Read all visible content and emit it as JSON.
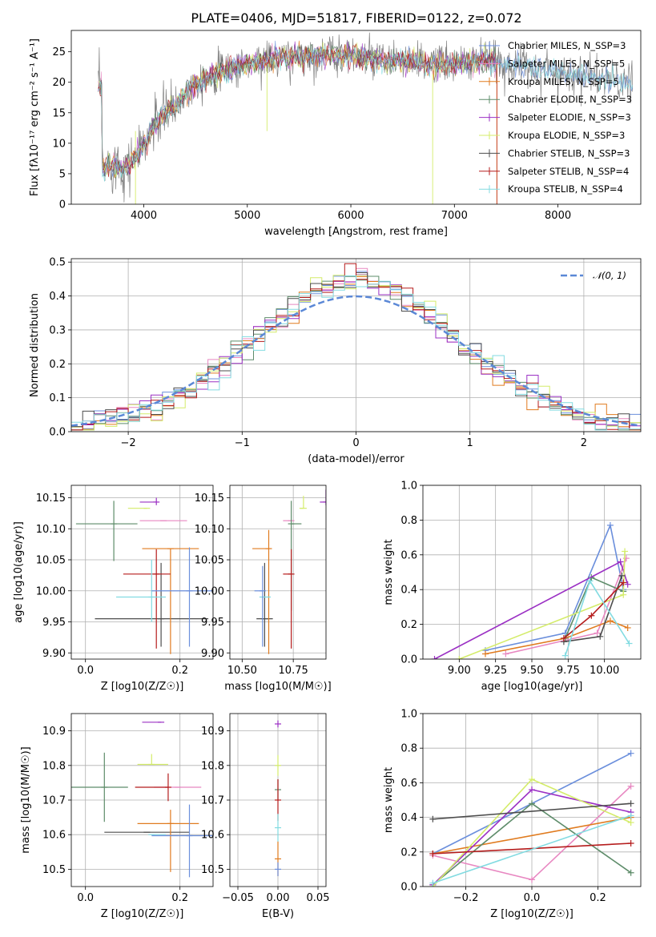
{
  "chart_data": [
    {
      "type": "line",
      "title": "PLATE=0406, MJD=51817, FIBERID=0122, z=0.072",
      "xlabel": "wavelength [Angstrom, rest frame]",
      "ylabel": "Flux [fλ10⁻¹⁷ erg cm⁻² s⁻¹ A⁻¹]",
      "xlim": [
        3300,
        8800
      ],
      "ylim": [
        0,
        28.5
      ],
      "xticks": [
        "4000",
        "5000",
        "6000",
        "7000",
        "8000"
      ],
      "yticks": [
        "0",
        "5",
        "10",
        "15",
        "20",
        "25"
      ],
      "legend_position": "top-right",
      "data_spectrum_color": "#808080",
      "spectrum_envelope": {
        "x": [
          3600,
          3700,
          3800,
          3900,
          4000,
          4100,
          4200,
          4300,
          4400,
          4500,
          4700,
          4900,
          5100,
          5300,
          5500,
          5700,
          5900,
          6100,
          6300,
          6500,
          6700,
          6900,
          7100,
          7300,
          7500,
          7700,
          7900,
          8100,
          8300,
          8500,
          8700
        ],
        "y": [
          6,
          6.5,
          6,
          7,
          9.5,
          13,
          15,
          16,
          18,
          20,
          21.5,
          22.5,
          23.5,
          24,
          24,
          24.5,
          24.5,
          24,
          23.5,
          23.5,
          23,
          23,
          23,
          23.5,
          23,
          22.5,
          22,
          21.5,
          21,
          20.5,
          19.5
        ]
      },
      "series": [
        {
          "name": "Chabrier MILES, N_SSP=3",
          "color": "#6b8fdc"
        },
        {
          "name": "Salpeter MILES, N_SSP=5",
          "color": "#e887c1"
        },
        {
          "name": "Kroupa MILES, N_SSP=5",
          "color": "#e07b1f"
        },
        {
          "name": "Chabrier ELODIE, N_SSP=3",
          "color": "#5e8c6a"
        },
        {
          "name": "Salpeter ELODIE, N_SSP=3",
          "color": "#9b30c4"
        },
        {
          "name": "Kroupa ELODIE, N_SSP=3",
          "color": "#d4ec6a"
        },
        {
          "name": "Chabrier STELIB, N_SSP=3",
          "color": "#4d4d4d"
        },
        {
          "name": "Salpeter STELIB, N_SSP=4",
          "color": "#b51c1c"
        },
        {
          "name": "Kroupa STELIB, N_SSP=4",
          "color": "#82dbe1"
        }
      ]
    },
    {
      "type": "histogram",
      "xlabel": "(data-model)/error",
      "ylabel": "Normed distribution",
      "xlim": [
        -2.5,
        2.5
      ],
      "ylim": [
        0,
        0.51
      ],
      "xticks": [
        "−2",
        "−1",
        "0",
        "1",
        "2"
      ],
      "yticks": [
        "0.0",
        "0.1",
        "0.2",
        "0.3",
        "0.4",
        "0.5"
      ],
      "grid": true,
      "legend_label": "𝒩(0, 1)",
      "legend_position": "top-right",
      "bin_width": 0.1,
      "series_colors": [
        "#6b8fdc",
        "#e887c1",
        "#e07b1f",
        "#5e8c6a",
        "#9b30c4",
        "#d4ec6a",
        "#4d4d4d",
        "#b51c1c",
        "#82dbe1"
      ],
      "reference_curve": {
        "type": "normal",
        "mean": 0,
        "sd": 1,
        "color": "#5b88d6"
      }
    },
    {
      "type": "scatter",
      "xlabel": "Z [log10(Z/Z☉)]",
      "ylabel": "age  [log10(age/yr)]",
      "xlim": [
        -0.03,
        0.27
      ],
      "ylim": [
        9.89,
        10.17
      ],
      "xticks": [
        "0.0",
        "0.2"
      ],
      "yticks": [
        "9.90",
        "9.95",
        "10.00",
        "10.05",
        "10.10",
        "10.15"
      ],
      "grid": true,
      "points": [
        {
          "x": 0.16,
          "y": 9.955,
          "xerr": [
            0.14,
            0.1
          ],
          "yerr": [
            0.045,
            0.09
          ],
          "color": "#4d4d4d"
        },
        {
          "x": 0.165,
          "y": 10.113,
          "xerr": [
            0.05,
            0.05
          ],
          "yerr": [
            0.0,
            0.0
          ],
          "color": "#e887c1"
        },
        {
          "x": 0.15,
          "y": 10.143,
          "xerr": [
            0.035,
            0.0
          ],
          "yerr": [
            0.005,
            0.007
          ],
          "color": "#9b30c4"
        },
        {
          "x": 0.13,
          "y": 10.133,
          "xerr": [
            0.04,
            0.0
          ],
          "yerr": [
            0.0,
            0.0
          ],
          "color": "#d4ec6a"
        },
        {
          "x": 0.06,
          "y": 10.108,
          "xerr": [
            0.08,
            0.05
          ],
          "yerr": [
            0.06,
            0.037
          ],
          "color": "#5e8c6a"
        },
        {
          "x": 0.18,
          "y": 10.068,
          "xerr": [
            0.06,
            0.06
          ],
          "yerr": [
            0.17,
            0.0
          ],
          "color": "#e07b1f"
        },
        {
          "x": 0.15,
          "y": 10.027,
          "xerr": [
            0.07,
            0.03
          ],
          "yerr": [
            0.12,
            0.04
          ],
          "color": "#b51c1c"
        },
        {
          "x": 0.14,
          "y": 9.99,
          "xerr": [
            0.075,
            0.03
          ],
          "yerr": [
            0.04,
            0.06
          ],
          "color": "#82dbe1"
        },
        {
          "x": 0.22,
          "y": 10.0,
          "xerr": [
            0.08,
            0.06
          ],
          "yerr": [
            0.09,
            0.07
          ],
          "color": "#6b8fdc"
        }
      ]
    },
    {
      "type": "scatter",
      "xlabel": "mass [log10(M/M☉)]",
      "xlim": [
        10.44,
        10.91
      ],
      "ylim": [
        9.89,
        10.17
      ],
      "xticks": [
        "10.50",
        "10.75"
      ],
      "yticks": [
        "9.90",
        "9.95",
        "10.00",
        "10.05",
        "10.10",
        "10.15"
      ],
      "grid": true,
      "points": [
        {
          "x": 10.61,
          "y": 9.955,
          "xerr": [
            0.04,
            0.04
          ],
          "yerr": [
            0.045,
            0.09
          ],
          "color": "#4d4d4d"
        },
        {
          "x": 10.74,
          "y": 10.113,
          "xerr": [
            0.04,
            0.0
          ],
          "yerr": [
            0.0,
            0.0
          ],
          "color": "#e887c1"
        },
        {
          "x": 10.91,
          "y": 10.143,
          "xerr": [
            0.03,
            0.0
          ],
          "yerr": [
            0.005,
            0.02
          ],
          "color": "#9b30c4"
        },
        {
          "x": 10.8,
          "y": 10.133,
          "xerr": [
            0.02,
            0.0
          ],
          "yerr": [
            0.0,
            0.02
          ],
          "color": "#d4ec6a"
        },
        {
          "x": 10.74,
          "y": 10.108,
          "xerr": [
            0.0,
            0.05
          ],
          "yerr": [
            0.14,
            0.037
          ],
          "color": "#5e8c6a"
        },
        {
          "x": 10.63,
          "y": 10.068,
          "xerr": [
            0.08,
            0.0
          ],
          "yerr": [
            0.17,
            0.03
          ],
          "color": "#e07b1f"
        },
        {
          "x": 10.74,
          "y": 10.027,
          "xerr": [
            0.04,
            0.0
          ],
          "yerr": [
            0.12,
            0.04
          ],
          "color": "#b51c1c"
        },
        {
          "x": 10.6,
          "y": 9.99,
          "xerr": [
            0.0,
            0.04
          ],
          "yerr": [
            0.0,
            0.0
          ],
          "color": "#82dbe1"
        },
        {
          "x": 10.6,
          "y": 10.0,
          "xerr": [
            0.04,
            0.0
          ],
          "yerr": [
            0.09,
            0.04
          ],
          "color": "#6b8fdc"
        }
      ]
    },
    {
      "type": "line",
      "xlabel": "age  [log10(age/yr)]",
      "ylabel": "mass weight",
      "xlim": [
        8.75,
        10.25
      ],
      "ylim": [
        0,
        1.0
      ],
      "xticks": [
        "9.00",
        "9.25",
        "9.50",
        "9.75",
        "10.00"
      ],
      "yticks": [
        "0.0",
        "0.2",
        "0.4",
        "0.6",
        "0.8",
        "1.0"
      ],
      "grid": true,
      "series": [
        {
          "color": "#6b8fdc",
          "x": [
            9.18,
            9.73,
            10.04,
            10.13
          ],
          "y": [
            0.05,
            0.15,
            0.77,
            0.4
          ]
        },
        {
          "color": "#e887c1",
          "x": [
            9.32,
            9.95,
            10.15
          ],
          "y": [
            0.03,
            0.15,
            0.58
          ]
        },
        {
          "color": "#e07b1f",
          "x": [
            9.18,
            9.73,
            10.04,
            10.16
          ],
          "y": [
            0.03,
            0.12,
            0.22,
            0.18
          ]
        },
        {
          "color": "#5e8c6a",
          "x": [
            9.73,
            9.91,
            10.13
          ],
          "y": [
            0.12,
            0.47,
            0.39
          ]
        },
        {
          "color": "#9b30c4",
          "x": [
            8.83,
            10.11,
            10.16
          ],
          "y": [
            0.0,
            0.56,
            0.43
          ]
        },
        {
          "color": "#d4ec6a",
          "x": [
            9.0,
            10.13,
            10.14
          ],
          "y": [
            0.0,
            0.37,
            0.62
          ]
        },
        {
          "color": "#4d4d4d",
          "x": [
            9.72,
            9.97,
            10.12
          ],
          "y": [
            0.1,
            0.13,
            0.48
          ]
        },
        {
          "color": "#b51c1c",
          "x": [
            9.72,
            9.91,
            10.13
          ],
          "y": [
            0.12,
            0.25,
            0.44
          ]
        },
        {
          "color": "#82dbe1",
          "x": [
            9.73,
            9.9,
            10.17
          ],
          "y": [
            0.02,
            0.45,
            0.09
          ]
        }
      ]
    },
    {
      "type": "scatter",
      "xlabel": "Z [log10(Z/Z☉)]",
      "ylabel": "mass [log10(M/M☉)]",
      "xlim": [
        -0.03,
        0.27
      ],
      "ylim": [
        10.45,
        10.95
      ],
      "xticks": [
        "0.0",
        "0.2"
      ],
      "yticks": [
        "10.5",
        "10.6",
        "10.7",
        "10.8",
        "10.9"
      ],
      "grid": true,
      "points": [
        {
          "x": 0.13,
          "y": 10.607,
          "xerr": [
            0.09,
            0.09
          ],
          "yerr": [
            0.0,
            0.0
          ],
          "color": "#4d4d4d"
        },
        {
          "x": 0.195,
          "y": 10.737,
          "xerr": [
            0.05,
            0.05
          ],
          "yerr": [
            0.0,
            0.0
          ],
          "color": "#e887c1"
        },
        {
          "x": 0.16,
          "y": 10.925,
          "xerr": [
            0.04,
            0.0
          ],
          "yerr": [
            0.0,
            0.0
          ],
          "color": "#9b30c4"
        },
        {
          "x": 0.14,
          "y": 10.803,
          "xerr": [
            0.03,
            0.035
          ],
          "yerr": [
            0.0,
            0.03
          ],
          "color": "#d4ec6a"
        },
        {
          "x": 0.04,
          "y": 10.737,
          "xerr": [
            0.07,
            0.05
          ],
          "yerr": [
            0.1,
            0.1
          ],
          "color": "#5e8c6a"
        },
        {
          "x": 0.18,
          "y": 10.632,
          "xerr": [
            0.07,
            0.06
          ],
          "yerr": [
            0.14,
            0.04
          ],
          "color": "#e07b1f"
        },
        {
          "x": 0.175,
          "y": 10.737,
          "xerr": [
            0.07,
            0.0
          ],
          "yerr": [
            0.04,
            0.04
          ],
          "color": "#b51c1c"
        },
        {
          "x": 0.14,
          "y": 10.6,
          "xerr": [
            0.0,
            0.03
          ],
          "yerr": [
            0.0,
            0.0
          ],
          "color": "#82dbe1"
        },
        {
          "x": 0.22,
          "y": 10.597,
          "xerr": [
            0.08,
            0.05
          ],
          "yerr": [
            0.12,
            0.09
          ],
          "color": "#6b8fdc"
        }
      ]
    },
    {
      "type": "scatter",
      "xlabel": "E(B-V)",
      "xlim": [
        -0.06,
        0.06
      ],
      "ylim": [
        10.45,
        10.95
      ],
      "xticks": [
        "−0.05",
        "0.00",
        "0.05"
      ],
      "yticks": [
        "10.5",
        "10.6",
        "10.7",
        "10.8",
        "10.9"
      ],
      "grid": true,
      "points": [
        {
          "x": 0.0,
          "y": 10.92,
          "yerr": [
            0.01,
            0.01
          ],
          "color": "#9b30c4"
        },
        {
          "x": 0.0,
          "y": 10.8,
          "yerr": [
            0.03,
            0.03
          ],
          "color": "#d4ec6a"
        },
        {
          "x": 0.0,
          "y": 10.73,
          "yerr": [
            0.03,
            0.03
          ],
          "color": "#5e8c6a"
        },
        {
          "x": 0.0,
          "y": 10.7,
          "yerr": [
            0.06,
            0.06
          ],
          "color": "#b51c1c"
        },
        {
          "x": 0.0,
          "y": 10.62,
          "yerr": [
            0.04,
            0.04
          ],
          "color": "#82dbe1"
        },
        {
          "x": 0.0,
          "y": 10.53,
          "yerr": [
            0.05,
            0.05
          ],
          "color": "#e07b1f"
        },
        {
          "x": 0.0,
          "y": 10.5,
          "yerr": [
            0.02,
            0.02
          ],
          "color": "#6b8fdc"
        }
      ]
    },
    {
      "type": "line",
      "xlabel": "Z [log10(Z/Z☉)]",
      "ylabel": "mass weight",
      "xlim": [
        -0.33,
        0.33
      ],
      "ylim": [
        0,
        1.0
      ],
      "xticks": [
        "−0.2",
        "0.0",
        "0.2"
      ],
      "yticks": [
        "0.0",
        "0.2",
        "0.4",
        "0.6",
        "0.8",
        "1.0"
      ],
      "grid": true,
      "series": [
        {
          "color": "#6b8fdc",
          "x": [
            -0.3,
            0.3
          ],
          "y": [
            0.19,
            0.77
          ]
        },
        {
          "color": "#e887c1",
          "x": [
            -0.3,
            0.0,
            0.3
          ],
          "y": [
            0.18,
            0.04,
            0.58
          ]
        },
        {
          "color": "#e07b1f",
          "x": [
            -0.3,
            0.3
          ],
          "y": [
            0.19,
            0.4
          ]
        },
        {
          "color": "#5e8c6a",
          "x": [
            -0.3,
            0.0,
            0.3
          ],
          "y": [
            0.01,
            0.48,
            0.08
          ]
        },
        {
          "color": "#9b30c4",
          "x": [
            -0.3,
            0.0,
            0.3
          ],
          "y": [
            0.01,
            0.56,
            0.43
          ]
        },
        {
          "color": "#d4ec6a",
          "x": [
            -0.3,
            0.0,
            0.3
          ],
          "y": [
            0.0,
            0.62,
            0.37
          ]
        },
        {
          "color": "#4d4d4d",
          "x": [
            -0.3,
            0.3
          ],
          "y": [
            0.39,
            0.48
          ]
        },
        {
          "color": "#b51c1c",
          "x": [
            -0.3,
            0.3
          ],
          "y": [
            0.19,
            0.25
          ]
        },
        {
          "color": "#82dbe1",
          "x": [
            -0.3,
            0.3
          ],
          "y": [
            0.02,
            0.41
          ]
        }
      ]
    }
  ]
}
